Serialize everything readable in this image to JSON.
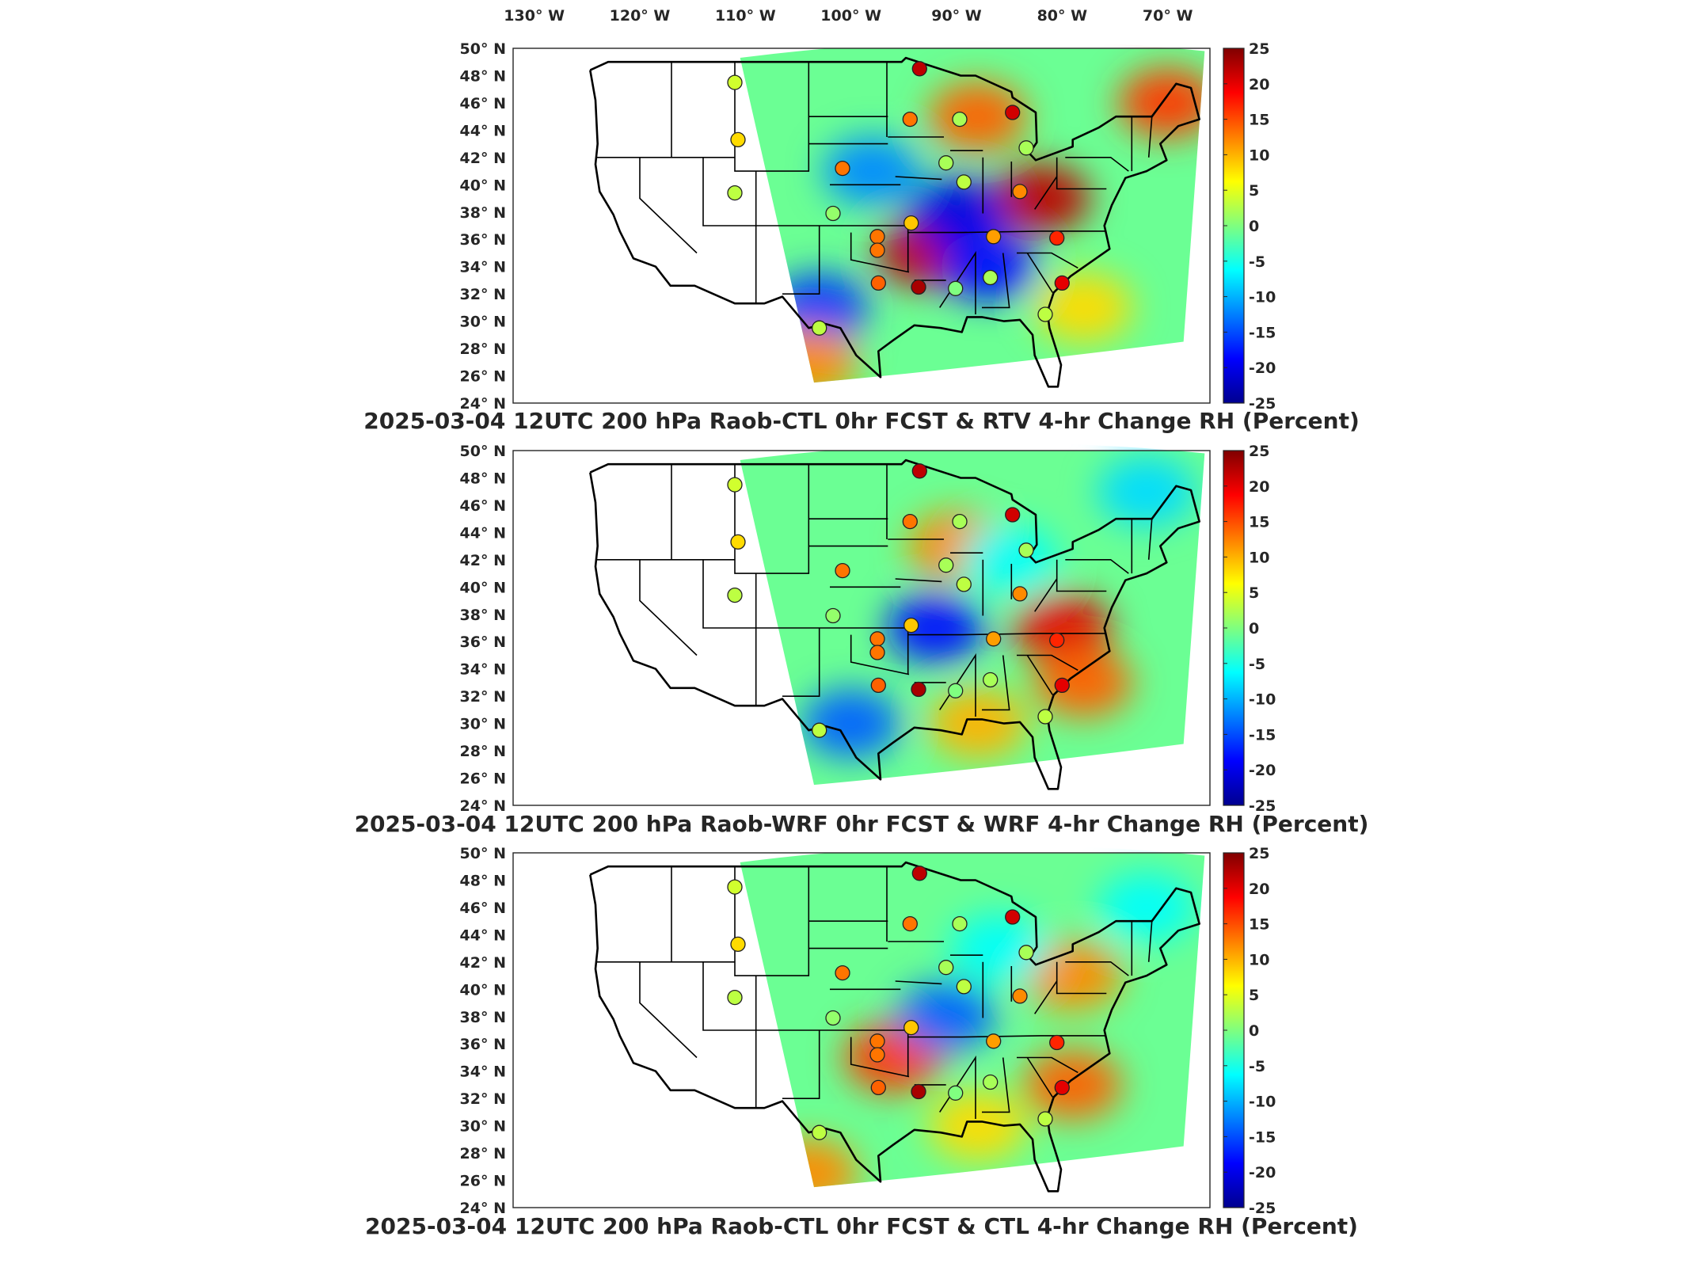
{
  "figure": {
    "lon_labels": [
      "130° W",
      "120° W",
      "110° W",
      "100° W",
      "90° W",
      "80° W",
      "70° W"
    ],
    "lat_labels": [
      "50° N",
      "48° N",
      "46° N",
      "44° N",
      "42° N",
      "40° N",
      "38° N",
      "36° N",
      "34° N",
      "32° N",
      "30° N",
      "28° N",
      "26° N",
      "24° N"
    ]
  },
  "chart_data": [
    {
      "type": "heatmap",
      "title": "2025-03-04 12UTC 200 hPa Raob-CTL 0hr FCST & RTV 4-hr Change RH (Percent)",
      "xlabel": "",
      "ylabel": "",
      "xlim": [
        -132,
        -66
      ],
      "ylim": [
        24,
        50
      ],
      "colorbar": {
        "ticks": [
          25,
          20,
          15,
          10,
          5,
          0,
          -5,
          -10,
          -15,
          -20,
          -25
        ],
        "range": [
          -25,
          25
        ],
        "colormap": "jet"
      },
      "field_blobs": [
        {
          "lon": -93,
          "lat": 35,
          "v": 22
        },
        {
          "lon": -88,
          "lat": 45,
          "v": 14
        },
        {
          "lon": -82,
          "lat": 39,
          "v": 22
        },
        {
          "lon": -90,
          "lat": 38,
          "v": -20
        },
        {
          "lon": -103,
          "lat": 31,
          "v": -16
        },
        {
          "lon": -98,
          "lat": 41,
          "v": -12
        },
        {
          "lon": -87,
          "lat": 34,
          "v": -18
        },
        {
          "lon": -70,
          "lat": 46,
          "v": 16
        },
        {
          "lon": -78,
          "lat": 31,
          "v": 8
        },
        {
          "lon": -104,
          "lat": 27,
          "v": 12
        }
      ],
      "stations": [
        {
          "lon": -111.0,
          "lat": 47.5,
          "v": 4
        },
        {
          "lon": -110.7,
          "lat": 43.3,
          "v": 8
        },
        {
          "lon": -111.0,
          "lat": 39.4,
          "v": 3
        },
        {
          "lon": -101.7,
          "lat": 37.9,
          "v": 1
        },
        {
          "lon": -100.8,
          "lat": 41.2,
          "v": 13
        },
        {
          "lon": -93.5,
          "lat": 48.5,
          "v": 22
        },
        {
          "lon": -94.4,
          "lat": 44.8,
          "v": 13
        },
        {
          "lon": -89.7,
          "lat": 44.8,
          "v": 2
        },
        {
          "lon": -84.7,
          "lat": 45.3,
          "v": 21
        },
        {
          "lon": -83.4,
          "lat": 42.7,
          "v": 2
        },
        {
          "lon": -91.0,
          "lat": 41.6,
          "v": 2
        },
        {
          "lon": -89.3,
          "lat": 40.2,
          "v": 3
        },
        {
          "lon": -84.0,
          "lat": 39.5,
          "v": 12
        },
        {
          "lon": -94.3,
          "lat": 37.2,
          "v": 9
        },
        {
          "lon": -97.5,
          "lat": 36.2,
          "v": 13
        },
        {
          "lon": -97.5,
          "lat": 35.2,
          "v": 13
        },
        {
          "lon": -86.5,
          "lat": 36.2,
          "v": 11
        },
        {
          "lon": -80.5,
          "lat": 36.1,
          "v": 17
        },
        {
          "lon": -97.4,
          "lat": 32.8,
          "v": 14
        },
        {
          "lon": -93.6,
          "lat": 32.5,
          "v": 23
        },
        {
          "lon": -90.1,
          "lat": 32.4,
          "v": 0
        },
        {
          "lon": -86.8,
          "lat": 33.2,
          "v": 2
        },
        {
          "lon": -80.0,
          "lat": 32.8,
          "v": 20
        },
        {
          "lon": -81.6,
          "lat": 30.5,
          "v": 3
        },
        {
          "lon": -103.0,
          "lat": 29.5,
          "v": 3
        }
      ]
    },
    {
      "type": "heatmap",
      "title": "2025-03-04 12UTC 200 hPa Raob-WRF 0hr FCST & WRF 4-hr Change RH (Percent)",
      "xlabel": "",
      "ylabel": "",
      "xlim": [
        -132,
        -66
      ],
      "ylim": [
        24,
        50
      ],
      "colorbar": {
        "ticks": [
          25,
          20,
          15,
          10,
          5,
          0,
          -5,
          -10,
          -15,
          -20,
          -25
        ],
        "range": [
          -25,
          25
        ],
        "colormap": "jet"
      },
      "field_blobs": [
        {
          "lon": -80,
          "lat": 37,
          "v": 20
        },
        {
          "lon": -78,
          "lat": 33,
          "v": 14
        },
        {
          "lon": -92,
          "lat": 37,
          "v": -18
        },
        {
          "lon": -100,
          "lat": 30,
          "v": -14
        },
        {
          "lon": -90,
          "lat": 43,
          "v": 12
        },
        {
          "lon": -72,
          "lat": 47,
          "v": -8
        },
        {
          "lon": -88,
          "lat": 30,
          "v": 10
        },
        {
          "lon": -85,
          "lat": 42,
          "v": -6
        }
      ],
      "stations": [
        {
          "lon": -111.0,
          "lat": 47.5,
          "v": 4
        },
        {
          "lon": -110.7,
          "lat": 43.3,
          "v": 8
        },
        {
          "lon": -111.0,
          "lat": 39.4,
          "v": 3
        },
        {
          "lon": -101.7,
          "lat": 37.9,
          "v": 1
        },
        {
          "lon": -100.8,
          "lat": 41.2,
          "v": 13
        },
        {
          "lon": -93.5,
          "lat": 48.5,
          "v": 22
        },
        {
          "lon": -94.4,
          "lat": 44.8,
          "v": 13
        },
        {
          "lon": -89.7,
          "lat": 44.8,
          "v": 2
        },
        {
          "lon": -84.7,
          "lat": 45.3,
          "v": 21
        },
        {
          "lon": -83.4,
          "lat": 42.7,
          "v": 2
        },
        {
          "lon": -91.0,
          "lat": 41.6,
          "v": 2
        },
        {
          "lon": -89.3,
          "lat": 40.2,
          "v": 3
        },
        {
          "lon": -84.0,
          "lat": 39.5,
          "v": 12
        },
        {
          "lon": -94.3,
          "lat": 37.2,
          "v": 9
        },
        {
          "lon": -97.5,
          "lat": 36.2,
          "v": 13
        },
        {
          "lon": -97.5,
          "lat": 35.2,
          "v": 13
        },
        {
          "lon": -86.5,
          "lat": 36.2,
          "v": 11
        },
        {
          "lon": -80.5,
          "lat": 36.1,
          "v": 17
        },
        {
          "lon": -97.4,
          "lat": 32.8,
          "v": 14
        },
        {
          "lon": -93.6,
          "lat": 32.5,
          "v": 23
        },
        {
          "lon": -90.1,
          "lat": 32.4,
          "v": 0
        },
        {
          "lon": -86.8,
          "lat": 33.2,
          "v": 2
        },
        {
          "lon": -80.0,
          "lat": 32.8,
          "v": 20
        },
        {
          "lon": -81.6,
          "lat": 30.5,
          "v": 3
        },
        {
          "lon": -103.0,
          "lat": 29.5,
          "v": 3
        }
      ]
    },
    {
      "type": "heatmap",
      "title": "2025-03-04 12UTC 200 hPa Raob-CTL 0hr FCST & CTL 4-hr Change RH (Percent)",
      "xlabel": "",
      "ylabel": "",
      "xlim": [
        -132,
        -66
      ],
      "ylim": [
        24,
        50
      ],
      "colorbar": {
        "ticks": [
          25,
          20,
          15,
          10,
          5,
          0,
          -5,
          -10,
          -15,
          -20,
          -25
        ],
        "range": [
          -25,
          25
        ],
        "colormap": "jet"
      },
      "field_blobs": [
        {
          "lon": -96,
          "lat": 35,
          "v": 16
        },
        {
          "lon": -79,
          "lat": 33,
          "v": 14
        },
        {
          "lon": -79,
          "lat": 41,
          "v": 12
        },
        {
          "lon": -91,
          "lat": 38,
          "v": -14
        },
        {
          "lon": -86,
          "lat": 43,
          "v": -6
        },
        {
          "lon": -72,
          "lat": 46,
          "v": -6
        },
        {
          "lon": -104,
          "lat": 26.5,
          "v": 12
        },
        {
          "lon": -88,
          "lat": 30,
          "v": 8
        }
      ],
      "stations": [
        {
          "lon": -111.0,
          "lat": 47.5,
          "v": 4
        },
        {
          "lon": -110.7,
          "lat": 43.3,
          "v": 8
        },
        {
          "lon": -111.0,
          "lat": 39.4,
          "v": 3
        },
        {
          "lon": -101.7,
          "lat": 37.9,
          "v": 1
        },
        {
          "lon": -100.8,
          "lat": 41.2,
          "v": 13
        },
        {
          "lon": -93.5,
          "lat": 48.5,
          "v": 22
        },
        {
          "lon": -94.4,
          "lat": 44.8,
          "v": 13
        },
        {
          "lon": -89.7,
          "lat": 44.8,
          "v": 2
        },
        {
          "lon": -84.7,
          "lat": 45.3,
          "v": 21
        },
        {
          "lon": -83.4,
          "lat": 42.7,
          "v": 2
        },
        {
          "lon": -91.0,
          "lat": 41.6,
          "v": 2
        },
        {
          "lon": -89.3,
          "lat": 40.2,
          "v": 3
        },
        {
          "lon": -84.0,
          "lat": 39.5,
          "v": 12
        },
        {
          "lon": -94.3,
          "lat": 37.2,
          "v": 9
        },
        {
          "lon": -97.5,
          "lat": 36.2,
          "v": 13
        },
        {
          "lon": -97.5,
          "lat": 35.2,
          "v": 13
        },
        {
          "lon": -86.5,
          "lat": 36.2,
          "v": 11
        },
        {
          "lon": -80.5,
          "lat": 36.1,
          "v": 17
        },
        {
          "lon": -97.4,
          "lat": 32.8,
          "v": 14
        },
        {
          "lon": -93.6,
          "lat": 32.5,
          "v": 23
        },
        {
          "lon": -90.1,
          "lat": 32.4,
          "v": 0
        },
        {
          "lon": -86.8,
          "lat": 33.2,
          "v": 2
        },
        {
          "lon": -80.0,
          "lat": 32.8,
          "v": 20
        },
        {
          "lon": -81.6,
          "lat": 30.5,
          "v": 3
        },
        {
          "lon": -103.0,
          "lat": 29.5,
          "v": 3
        }
      ]
    }
  ]
}
